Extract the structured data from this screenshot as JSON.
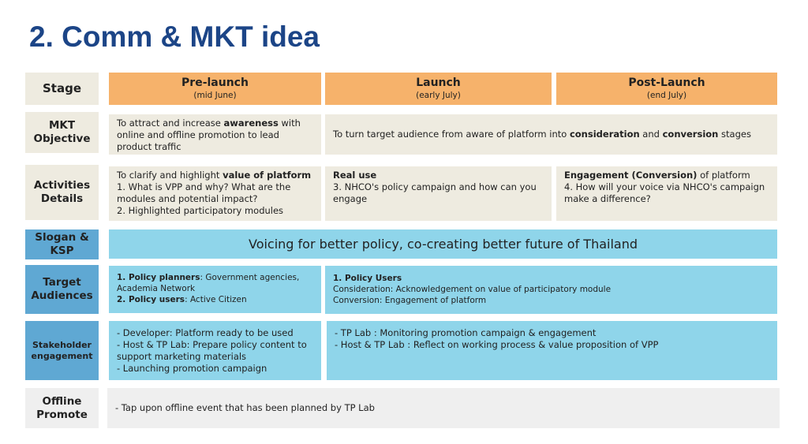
{
  "title": "2. Comm & MKT idea",
  "colors": {
    "title": "#1c4587",
    "stage_header": "#f6b26b",
    "beige": "#eeebe0",
    "label_blue": "#5fa8d3",
    "cell_cyan": "#8fd5ea",
    "gray": "#efefef"
  },
  "rows": {
    "stage": {
      "label": "Stage",
      "pre": {
        "title": "Pre-launch",
        "sub": "(mid June)"
      },
      "launch": {
        "title": "Launch",
        "sub": "(early July)"
      },
      "post": {
        "title": "Post-Launch",
        "sub": "(end July)"
      }
    },
    "objective": {
      "label": "MKT Objective",
      "pre": {
        "a": "To attract and increase ",
        "b": "awareness",
        "c": " with online and offline promotion to lead product traffic"
      },
      "rest": {
        "a": "To turn target audience from aware of platform into ",
        "b": "consideration",
        "c": " and ",
        "d": "conversion",
        "e": " stages"
      }
    },
    "activities": {
      "label": "Activities Details",
      "pre": {
        "a": "To clarify and highlight ",
        "b": "value of platform",
        "l1": "1.  What is VPP and why? What are the modules  and potential impact?",
        "l2": "2.  Highlighted participatory modules"
      },
      "launch": {
        "b": "Real use",
        "l1": "3. NHCO's policy campaign and how can you engage"
      },
      "post": {
        "b": "Engagement (Conversion)",
        "a": " of platform",
        "l1": "4. How will your voice via NHCO's campaign make a difference?"
      }
    },
    "slogan": {
      "label": "Slogan & KSP",
      "text": "Voicing for better policy, co-creating better future of Thailand"
    },
    "target": {
      "label": "Target Audiences",
      "pre": {
        "b1": "1. Policy planners",
        "t1": ": Government agencies, Academia Network",
        "b2": "2. Policy users",
        "t2": ": Active Citizen"
      },
      "rest": {
        "b": "1. Policy Users",
        "l1": "Consideration: Acknowledgement on value of participatory module",
        "l2": "Conversion: Engagement of platform"
      }
    },
    "stakeholder": {
      "label": "Stakeholder engagement",
      "pre": [
        "- Developer: Platform ready to be used",
        "- Host & TP Lab: Prepare policy content to support marketing materials",
        "- Launching promotion campaign"
      ],
      "rest": [
        "- TP Lab : Monitoring promotion campaign & engagement",
        "- Host & TP Lab : Reflect on working process & value proposition of VPP"
      ]
    },
    "offline": {
      "label": "Offline Promote",
      "text": "- Tap upon offline event that has been planned by TP Lab"
    }
  }
}
